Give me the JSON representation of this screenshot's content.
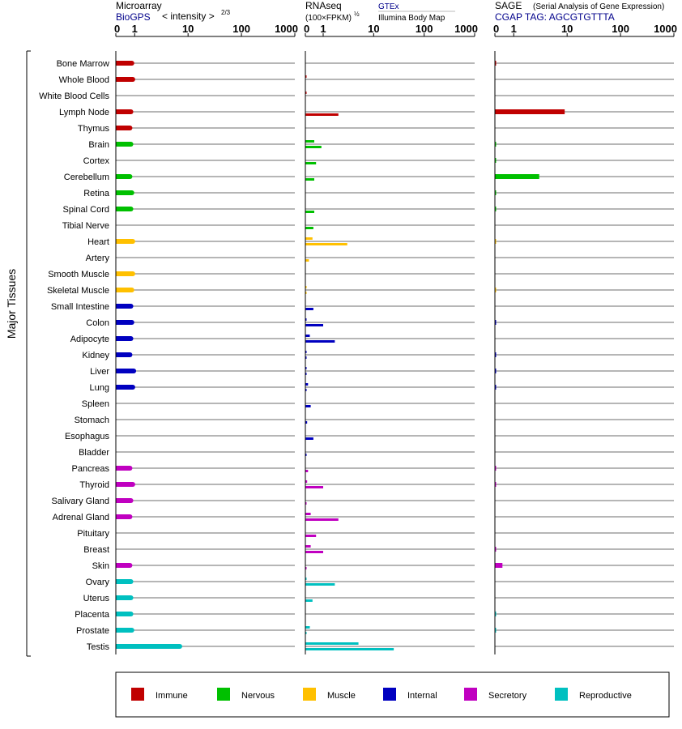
{
  "panels": {
    "microarray": {
      "title": "Microarray",
      "subtitle": "BioGPS",
      "scale_label": "< intensity >",
      "scale_exp": "2/3"
    },
    "rnaseq": {
      "title": "RNAseq",
      "subtitle": "(100×FPKM)",
      "subtitle_exp": "½",
      "source1": "GTEx",
      "source2": "Illumina Body Map"
    },
    "sage": {
      "title": "SAGE",
      "title_note": "(Serial Analysis of Gene Expression)",
      "subtitle": "CGAP  TAG: AGCGTGTTTA"
    }
  },
  "y_axis_label": "Major Tissues",
  "axis_ticks": [
    "0",
    "1",
    "10",
    "100",
    "1000"
  ],
  "axis_tick_values": [
    0,
    1,
    10,
    100,
    1000
  ],
  "legend": [
    {
      "label": "Immune",
      "color": "#c00000"
    },
    {
      "label": "Nervous",
      "color": "#00c000"
    },
    {
      "label": "Muscle",
      "color": "#ffc000"
    },
    {
      "label": "Internal",
      "color": "#0000c0"
    },
    {
      "label": "Secretory",
      "color": "#c000c0"
    },
    {
      "label": "Reproductive",
      "color": "#00c0c0"
    }
  ],
  "chart_data": {
    "type": "bar",
    "x_scale": "log-like (0, 1, 10, 100, 1000)",
    "xlim": [
      0,
      1000
    ],
    "categories": [
      "Bone Marrow",
      "Whole Blood",
      "White Blood Cells",
      "Lymph Node",
      "Thymus",
      "Brain",
      "Cortex",
      "Cerebellum",
      "Retina",
      "Spinal Cord",
      "Tibial Nerve",
      "Heart",
      "Artery",
      "Smooth Muscle",
      "Skeletal Muscle",
      "Small Intestine",
      "Colon",
      "Adipocyte",
      "Kidney",
      "Liver",
      "Lung",
      "Spleen",
      "Stomach",
      "Esophagus",
      "Bladder",
      "Pancreas",
      "Thyroid",
      "Salivary Gland",
      "Adrenal Gland",
      "Pituitary",
      "Breast",
      "Skin",
      "Ovary",
      "Uterus",
      "Placenta",
      "Prostate",
      "Testis"
    ],
    "groups": [
      "Immune",
      "Immune",
      "Immune",
      "Immune",
      "Immune",
      "Nervous",
      "Nervous",
      "Nervous",
      "Nervous",
      "Nervous",
      "Nervous",
      "Muscle",
      "Muscle",
      "Muscle",
      "Muscle",
      "Internal",
      "Internal",
      "Internal",
      "Internal",
      "Internal",
      "Internal",
      "Internal",
      "Internal",
      "Internal",
      "Internal",
      "Secretory",
      "Secretory",
      "Secretory",
      "Secretory",
      "Secretory",
      "Secretory",
      "Secretory",
      "Reproductive",
      "Reproductive",
      "Reproductive",
      "Reproductive",
      "Reproductive"
    ],
    "microarray": [
      0.85,
      0.9,
      null,
      0.8,
      0.75,
      0.8,
      null,
      0.75,
      0.85,
      0.8,
      null,
      0.9,
      null,
      0.9,
      0.85,
      0.8,
      0.85,
      0.8,
      0.75,
      0.95,
      0.9,
      null,
      null,
      null,
      null,
      0.75,
      0.9,
      0.8,
      0.75,
      null,
      null,
      0.75,
      0.8,
      0.8,
      0.8,
      0.85,
      7
    ],
    "rnaseq_gtex": [
      null,
      0.05,
      0.05,
      null,
      null,
      0.5,
      null,
      null,
      null,
      null,
      null,
      0.4,
      null,
      null,
      0.05,
      null,
      0.05,
      0.25,
      0.05,
      0.05,
      0.15,
      null,
      null,
      null,
      null,
      null,
      0.1,
      null,
      0.3,
      null,
      0.3,
      null,
      0.03,
      null,
      null,
      0.25,
      5
    ],
    "rnaseq_illumina": [
      null,
      null,
      null,
      2,
      null,
      0.9,
      0.6,
      0.5,
      null,
      0.5,
      0.45,
      3,
      0.2,
      null,
      0.05,
      0.45,
      1,
      1.7,
      0.05,
      0.05,
      0.05,
      0.3,
      0.1,
      0.45,
      0.05,
      0.15,
      1,
      0.05,
      2,
      0.6,
      1,
      0.05,
      1.7,
      0.4,
      null,
      0.05,
      25
    ],
    "sage": [
      0.05,
      null,
      null,
      9,
      null,
      0.05,
      0.05,
      3,
      0.05,
      0.05,
      null,
      0.02,
      null,
      null,
      0.02,
      null,
      0.05,
      null,
      0.05,
      0.05,
      0.05,
      null,
      null,
      null,
      null,
      0.05,
      0.05,
      null,
      null,
      null,
      0.05,
      0.4,
      null,
      null,
      0.05,
      0.05,
      null
    ]
  }
}
